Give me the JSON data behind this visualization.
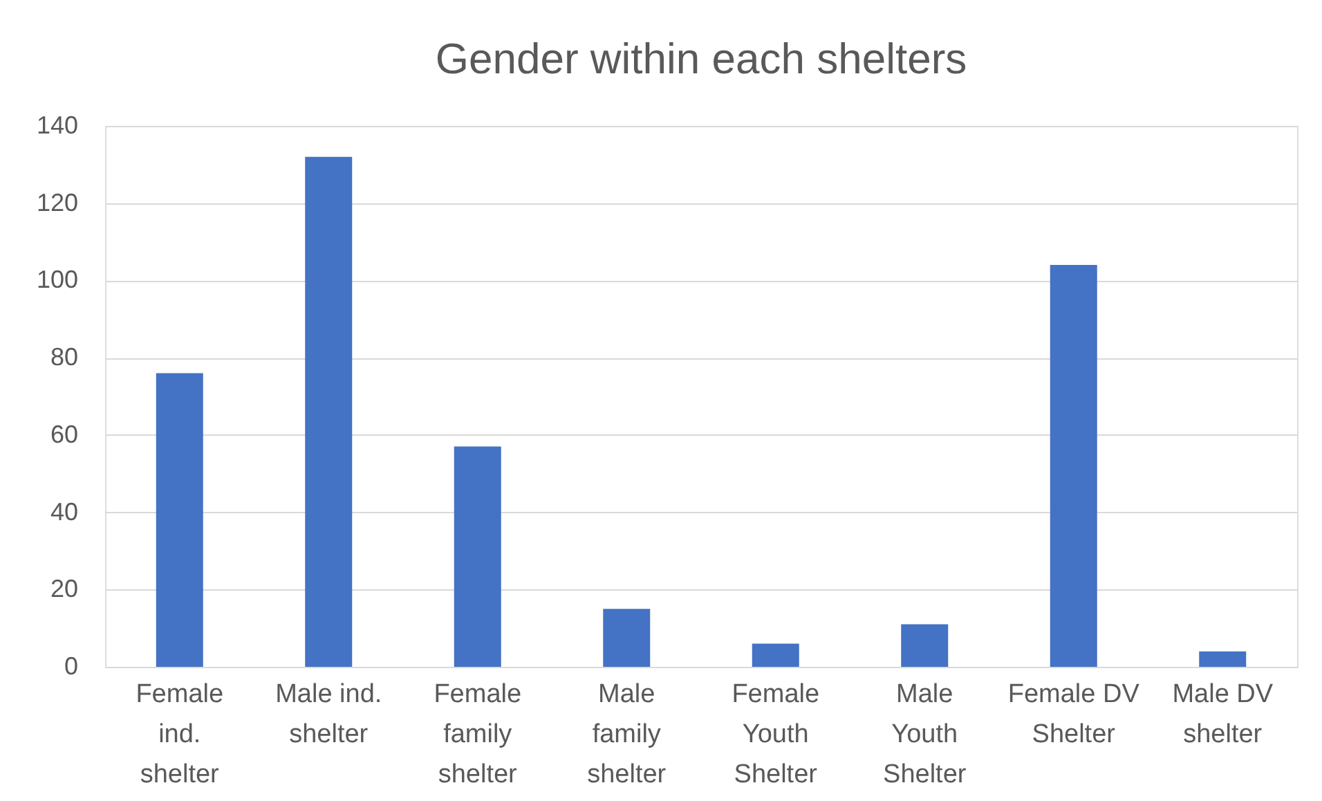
{
  "chart_data": {
    "type": "bar",
    "title": "Gender within each shelters",
    "categories": [
      "Female ind. shelter",
      "Male ind. shelter",
      "Female family shelter",
      "Male family shelter",
      "Female Youth Shelter",
      "Male Youth Shelter",
      "Female DV Shelter",
      "Male DV shelter"
    ],
    "values": [
      76,
      132,
      57,
      15,
      6,
      11,
      104,
      4
    ],
    "color": "#4472c4",
    "ylim": [
      0,
      140
    ],
    "yticks": [
      0,
      20,
      40,
      60,
      80,
      100,
      120,
      140
    ],
    "grid": "y"
  }
}
